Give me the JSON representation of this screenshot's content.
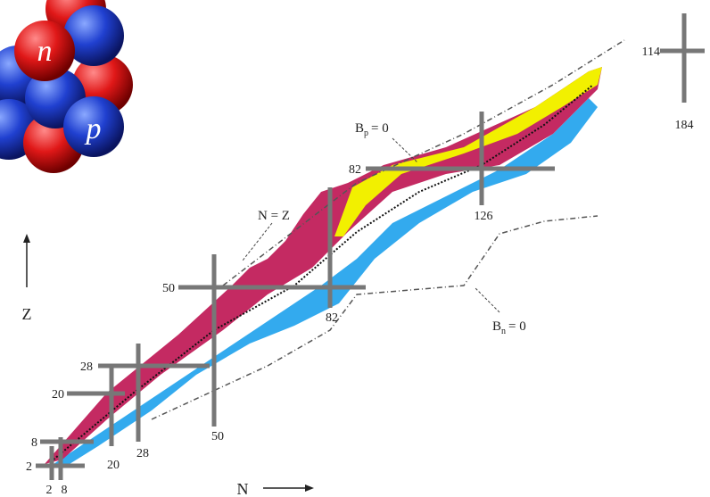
{
  "nucleus": {
    "neutron_label": "n",
    "proton_label": "p"
  },
  "axes": {
    "y_label": "Z",
    "x_label": "N"
  },
  "proton_magic": [
    2,
    8,
    20,
    28,
    50,
    82,
    114
  ],
  "neutron_magic": [
    2,
    8,
    20,
    28,
    50,
    82,
    126,
    184
  ],
  "annotations": {
    "n_equals_z": "N = Z",
    "proton_dripline": {
      "symbol": "B",
      "subscript": "p",
      "rest": "= 0"
    },
    "neutron_dripline": {
      "symbol": "B",
      "subscript": "n",
      "rest": "= 0"
    }
  }
}
